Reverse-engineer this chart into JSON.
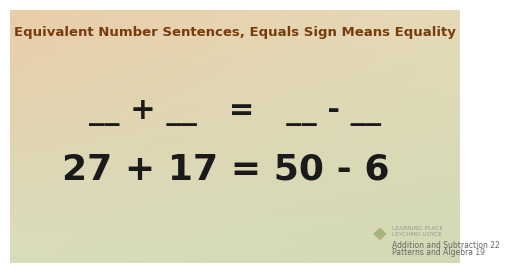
{
  "title": "Equivalent Number Sentences, Equals Sign Means Equality",
  "title_color": "#7a3a0a",
  "title_fontsize": 9.5,
  "line1": "__ + __   =   __ - __",
  "line2": "27 + 17 = 50 - 6",
  "line1_fontsize": 22,
  "line2_fontsize": 26,
  "text_color": "#1a1a1a",
  "bg_tl": [
    0.918,
    0.804,
    0.663
  ],
  "bg_tr": [
    0.898,
    0.855,
    0.718
  ],
  "bg_bl": [
    0.851,
    0.867,
    0.737
  ],
  "bg_br": [
    0.82,
    0.855,
    0.71
  ],
  "footer_text1": "Addition and Subtraction 22",
  "footer_text2": "Patterns and Algebra 19",
  "footer_fontsize": 5.5,
  "footer_color": "#666666",
  "logo_text": "LEARNING PLACE\nLEYCHMO UOYCE",
  "logo_fontsize": 4.2
}
